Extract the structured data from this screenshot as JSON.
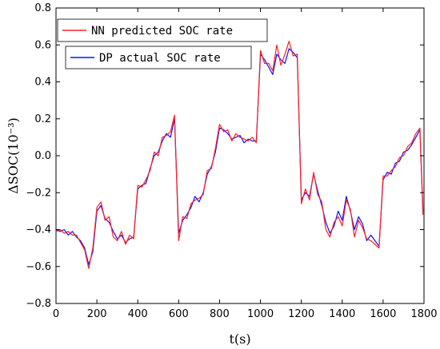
{
  "chart_data": {
    "type": "line",
    "xlabel": "t(s)",
    "ylabel": "ΔSOC(10⁻³)",
    "xlim": [
      0,
      1800
    ],
    "ylim": [
      -0.8,
      0.8
    ],
    "x_ticks": [
      0,
      200,
      400,
      600,
      800,
      1000,
      1200,
      1400,
      1600,
      1800
    ],
    "y_ticks": [
      -0.8,
      -0.6,
      -0.4,
      -0.2,
      0.0,
      0.2,
      0.4,
      0.6,
      0.8
    ],
    "y_tick_labels": [
      "−0.8",
      "−0.6",
      "−0.4",
      "−0.2",
      "0.0",
      "0.2",
      "0.4",
      "0.6",
      "0.8"
    ],
    "grid": false,
    "legend": [
      {
        "name": "NN predicted SOC rate",
        "color": "#ff2020"
      },
      {
        "name": "DP actual SOC rate",
        "color": "#1010ff"
      }
    ],
    "series": [
      {
        "name": "DP actual SOC rate",
        "color": "#1010ff",
        "points": [
          [
            0,
            -0.4
          ],
          [
            20,
            -0.41
          ],
          [
            40,
            -0.4
          ],
          [
            60,
            -0.43
          ],
          [
            80,
            -0.41
          ],
          [
            100,
            -0.44
          ],
          [
            120,
            -0.46
          ],
          [
            140,
            -0.5
          ],
          [
            160,
            -0.59
          ],
          [
            180,
            -0.52
          ],
          [
            200,
            -0.3
          ],
          [
            220,
            -0.27
          ],
          [
            240,
            -0.34
          ],
          [
            260,
            -0.36
          ],
          [
            280,
            -0.41
          ],
          [
            300,
            -0.45
          ],
          [
            320,
            -0.43
          ],
          [
            340,
            -0.47
          ],
          [
            360,
            -0.45
          ],
          [
            380,
            -0.44
          ],
          [
            400,
            -0.18
          ],
          [
            420,
            -0.16
          ],
          [
            440,
            -0.15
          ],
          [
            460,
            -0.07
          ],
          [
            480,
            0.0
          ],
          [
            500,
            0.02
          ],
          [
            520,
            0.08
          ],
          [
            540,
            0.12
          ],
          [
            560,
            0.1
          ],
          [
            580,
            0.2
          ],
          [
            600,
            -0.42
          ],
          [
            620,
            -0.35
          ],
          [
            640,
            -0.32
          ],
          [
            660,
            -0.28
          ],
          [
            680,
            -0.22
          ],
          [
            700,
            -0.25
          ],
          [
            720,
            -0.2
          ],
          [
            740,
            -0.1
          ],
          [
            760,
            -0.06
          ],
          [
            780,
            0.02
          ],
          [
            800,
            0.15
          ],
          [
            820,
            0.14
          ],
          [
            840,
            0.12
          ],
          [
            860,
            0.09
          ],
          [
            880,
            0.1
          ],
          [
            900,
            0.11
          ],
          [
            920,
            0.07
          ],
          [
            940,
            0.09
          ],
          [
            960,
            0.08
          ],
          [
            980,
            0.08
          ],
          [
            1000,
            0.55
          ],
          [
            1020,
            0.52
          ],
          [
            1040,
            0.48
          ],
          [
            1060,
            0.44
          ],
          [
            1080,
            0.55
          ],
          [
            1100,
            0.52
          ],
          [
            1120,
            0.5
          ],
          [
            1140,
            0.58
          ],
          [
            1160,
            0.56
          ],
          [
            1180,
            0.53
          ],
          [
            1200,
            -0.24
          ],
          [
            1220,
            -0.2
          ],
          [
            1240,
            -0.22
          ],
          [
            1260,
            -0.1
          ],
          [
            1280,
            -0.19
          ],
          [
            1300,
            -0.27
          ],
          [
            1320,
            -0.36
          ],
          [
            1340,
            -0.42
          ],
          [
            1360,
            -0.38
          ],
          [
            1380,
            -0.3
          ],
          [
            1400,
            -0.35
          ],
          [
            1420,
            -0.22
          ],
          [
            1440,
            -0.3
          ],
          [
            1460,
            -0.4
          ],
          [
            1480,
            -0.33
          ],
          [
            1500,
            -0.37
          ],
          [
            1520,
            -0.46
          ],
          [
            1540,
            -0.43
          ],
          [
            1560,
            -0.46
          ],
          [
            1580,
            -0.49
          ],
          [
            1600,
            -0.13
          ],
          [
            1620,
            -0.09
          ],
          [
            1640,
            -0.1
          ],
          [
            1660,
            -0.04
          ],
          [
            1680,
            -0.03
          ],
          [
            1700,
            0.02
          ],
          [
            1720,
            0.03
          ],
          [
            1740,
            0.06
          ],
          [
            1760,
            0.1
          ],
          [
            1780,
            0.14
          ],
          [
            1795,
            -0.3
          ]
        ]
      },
      {
        "name": "NN predicted SOC rate",
        "color": "#ff2020",
        "points": [
          [
            0,
            -0.41
          ],
          [
            20,
            -0.4
          ],
          [
            40,
            -0.42
          ],
          [
            60,
            -0.41
          ],
          [
            80,
            -0.43
          ],
          [
            100,
            -0.43
          ],
          [
            120,
            -0.47
          ],
          [
            140,
            -0.51
          ],
          [
            160,
            -0.61
          ],
          [
            180,
            -0.5
          ],
          [
            200,
            -0.28
          ],
          [
            220,
            -0.25
          ],
          [
            240,
            -0.35
          ],
          [
            260,
            -0.33
          ],
          [
            280,
            -0.44
          ],
          [
            300,
            -0.46
          ],
          [
            320,
            -0.41
          ],
          [
            340,
            -0.48
          ],
          [
            360,
            -0.43
          ],
          [
            380,
            -0.45
          ],
          [
            400,
            -0.16
          ],
          [
            420,
            -0.17
          ],
          [
            440,
            -0.13
          ],
          [
            460,
            -0.08
          ],
          [
            480,
            0.02
          ],
          [
            500,
            0.0
          ],
          [
            520,
            0.1
          ],
          [
            540,
            0.11
          ],
          [
            560,
            0.13
          ],
          [
            580,
            0.22
          ],
          [
            600,
            -0.46
          ],
          [
            620,
            -0.33
          ],
          [
            640,
            -0.34
          ],
          [
            660,
            -0.26
          ],
          [
            680,
            -0.24
          ],
          [
            700,
            -0.23
          ],
          [
            720,
            -0.21
          ],
          [
            740,
            -0.08
          ],
          [
            760,
            -0.07
          ],
          [
            780,
            0.04
          ],
          [
            800,
            0.17
          ],
          [
            820,
            0.13
          ],
          [
            840,
            0.14
          ],
          [
            860,
            0.08
          ],
          [
            880,
            0.12
          ],
          [
            900,
            0.1
          ],
          [
            920,
            0.09
          ],
          [
            940,
            0.08
          ],
          [
            960,
            0.1
          ],
          [
            980,
            0.07
          ],
          [
            1000,
            0.57
          ],
          [
            1020,
            0.5
          ],
          [
            1040,
            0.5
          ],
          [
            1060,
            0.46
          ],
          [
            1080,
            0.6
          ],
          [
            1100,
            0.49
          ],
          [
            1120,
            0.55
          ],
          [
            1140,
            0.62
          ],
          [
            1160,
            0.54
          ],
          [
            1180,
            0.55
          ],
          [
            1200,
            -0.26
          ],
          [
            1220,
            -0.18
          ],
          [
            1240,
            -0.24
          ],
          [
            1260,
            -0.09
          ],
          [
            1280,
            -0.21
          ],
          [
            1300,
            -0.25
          ],
          [
            1320,
            -0.4
          ],
          [
            1340,
            -0.44
          ],
          [
            1360,
            -0.36
          ],
          [
            1380,
            -0.33
          ],
          [
            1400,
            -0.38
          ],
          [
            1420,
            -0.24
          ],
          [
            1440,
            -0.29
          ],
          [
            1460,
            -0.44
          ],
          [
            1480,
            -0.35
          ],
          [
            1500,
            -0.39
          ],
          [
            1520,
            -0.45
          ],
          [
            1540,
            -0.46
          ],
          [
            1560,
            -0.48
          ],
          [
            1580,
            -0.5
          ],
          [
            1600,
            -0.11
          ],
          [
            1620,
            -0.11
          ],
          [
            1640,
            -0.08
          ],
          [
            1660,
            -0.06
          ],
          [
            1680,
            -0.01
          ],
          [
            1700,
            0.0
          ],
          [
            1720,
            0.05
          ],
          [
            1740,
            0.07
          ],
          [
            1760,
            0.12
          ],
          [
            1780,
            0.15
          ],
          [
            1795,
            -0.32
          ]
        ]
      }
    ]
  }
}
